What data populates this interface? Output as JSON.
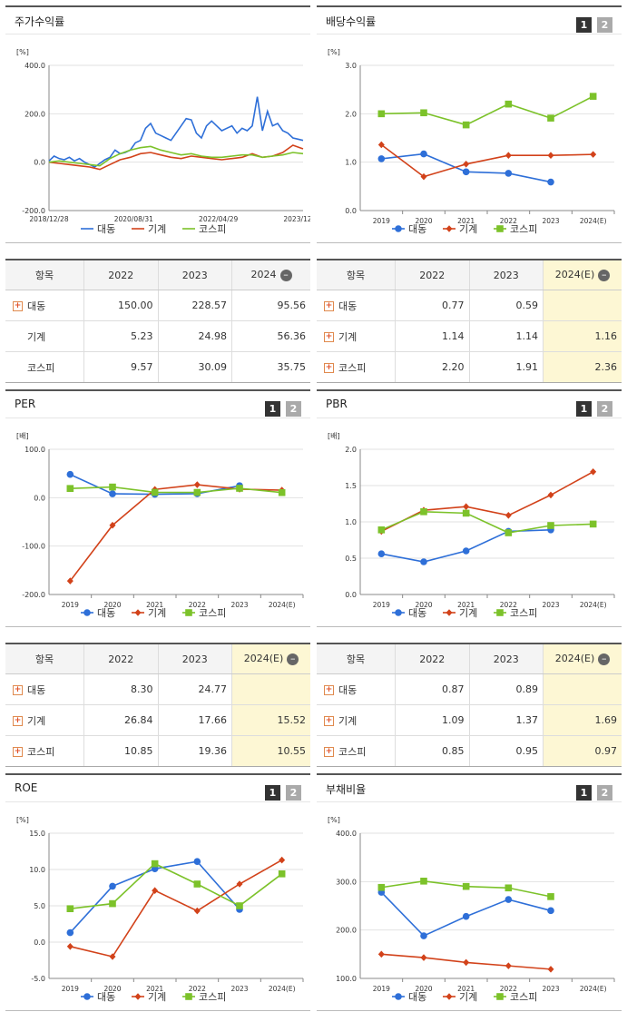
{
  "colors": {
    "daedong": "#2e6fd8",
    "machine": "#d2421a",
    "kospi": "#7cc22a"
  },
  "legend": [
    "대동",
    "기계",
    "코스피"
  ],
  "unit_pct": "[%]",
  "unit_bae": "[배]",
  "panels": {
    "stock": {
      "title": "주가수익률"
    },
    "dividend": {
      "title": "배당수익률",
      "btn1": "1",
      "btn2": "2"
    },
    "per": {
      "title": "PER",
      "btn1": "1",
      "btn2": "2"
    },
    "pbr": {
      "title": "PBR",
      "btn1": "1",
      "btn2": "2"
    },
    "roe": {
      "title": "ROE",
      "btn1": "1",
      "btn2": "2"
    },
    "debt": {
      "title": "부채비율",
      "btn1": "1",
      "btn2": "2"
    }
  },
  "tables": {
    "stock": {
      "headers": [
        "항목",
        "2022",
        "2023",
        "2024"
      ],
      "rows": [
        {
          "name": "대동",
          "v": [
            "150.00",
            "228.57",
            "95.56"
          ],
          "plus": true
        },
        {
          "name": "기계",
          "v": [
            "5.23",
            "24.98",
            "56.36"
          ],
          "plus": false
        },
        {
          "name": "코스피",
          "v": [
            "9.57",
            "30.09",
            "35.75"
          ],
          "plus": false
        }
      ]
    },
    "dividend": {
      "headers": [
        "항목",
        "2022",
        "2023",
        "2024(E)"
      ],
      "rows": [
        {
          "name": "대동",
          "v": [
            "0.77",
            "0.59",
            ""
          ],
          "plus": true
        },
        {
          "name": "기계",
          "v": [
            "1.14",
            "1.14",
            "1.16"
          ],
          "plus": true
        },
        {
          "name": "코스피",
          "v": [
            "2.20",
            "1.91",
            "2.36"
          ],
          "plus": true
        }
      ]
    },
    "per": {
      "headers": [
        "항목",
        "2022",
        "2023",
        "2024(E)"
      ],
      "rows": [
        {
          "name": "대동",
          "v": [
            "8.30",
            "24.77",
            ""
          ],
          "plus": true
        },
        {
          "name": "기계",
          "v": [
            "26.84",
            "17.66",
            "15.52"
          ],
          "plus": true
        },
        {
          "name": "코스피",
          "v": [
            "10.85",
            "19.36",
            "10.55"
          ],
          "plus": true
        }
      ]
    },
    "pbr": {
      "headers": [
        "항목",
        "2022",
        "2023",
        "2024(E)"
      ],
      "rows": [
        {
          "name": "대동",
          "v": [
            "0.87",
            "0.89",
            ""
          ],
          "plus": true
        },
        {
          "name": "기계",
          "v": [
            "1.09",
            "1.37",
            "1.69"
          ],
          "plus": true
        },
        {
          "name": "코스피",
          "v": [
            "0.85",
            "0.95",
            "0.97"
          ],
          "plus": true
        }
      ]
    }
  },
  "chart_data": [
    {
      "id": "stock",
      "type": "line",
      "ylabel": "[%]",
      "ylim": [
        -200,
        400
      ],
      "yticks": [
        "400.0",
        "200.0",
        "0.0",
        "-200.0"
      ],
      "xticks": [
        "2018/12/28",
        "2020/08/31",
        "2022/04/29",
        "2023/12/28"
      ],
      "xlim": [
        0,
        100
      ],
      "series": [
        {
          "name": "대동",
          "x": [
            0,
            2,
            4,
            6,
            8,
            10,
            12,
            14,
            16,
            18,
            20,
            22,
            24,
            26,
            28,
            30,
            32,
            34,
            36,
            38,
            40,
            42,
            44,
            46,
            48,
            50,
            52,
            54,
            56,
            58,
            60,
            62,
            64,
            66,
            68,
            70,
            72,
            74,
            76,
            78,
            80,
            82,
            84,
            86,
            88,
            90,
            92,
            94,
            96,
            98,
            100
          ],
          "y": [
            5,
            25,
            15,
            10,
            20,
            5,
            15,
            0,
            -10,
            -20,
            -5,
            10,
            20,
            50,
            35,
            40,
            50,
            80,
            90,
            140,
            160,
            120,
            110,
            100,
            90,
            120,
            150,
            180,
            175,
            120,
            100,
            150,
            170,
            150,
            130,
            140,
            150,
            120,
            140,
            130,
            150,
            270,
            130,
            210,
            150,
            160,
            130,
            120,
            100,
            95,
            90
          ]
        },
        {
          "name": "기계",
          "x": [
            0,
            4,
            8,
            12,
            16,
            20,
            24,
            28,
            32,
            36,
            40,
            44,
            48,
            52,
            56,
            60,
            64,
            68,
            72,
            76,
            80,
            84,
            88,
            92,
            96,
            100
          ],
          "y": [
            0,
            -5,
            -10,
            -15,
            -20,
            -30,
            -10,
            10,
            20,
            35,
            40,
            30,
            20,
            15,
            25,
            20,
            15,
            10,
            15,
            20,
            35,
            20,
            25,
            40,
            70,
            55
          ]
        },
        {
          "name": "코스피",
          "x": [
            0,
            4,
            8,
            12,
            16,
            20,
            24,
            28,
            32,
            36,
            40,
            44,
            48,
            52,
            56,
            60,
            64,
            68,
            72,
            76,
            80,
            84,
            88,
            92,
            96,
            100
          ],
          "y": [
            0,
            5,
            0,
            -5,
            -10,
            -15,
            15,
            35,
            50,
            60,
            65,
            50,
            40,
            30,
            35,
            25,
            20,
            20,
            25,
            30,
            30,
            20,
            25,
            30,
            40,
            35
          ]
        }
      ]
    },
    {
      "id": "dividend",
      "type": "line",
      "ylabel": "[%]",
      "ylim": [
        0,
        3
      ],
      "yticks": [
        "3.0",
        "2.0",
        "1.0",
        "0.0"
      ],
      "categories": [
        "2019",
        "2020",
        "2021",
        "2022",
        "2023",
        "2024(E)"
      ],
      "series": [
        {
          "name": "대동",
          "values": [
            1.07,
            1.17,
            0.8,
            0.77,
            0.59,
            null
          ]
        },
        {
          "name": "기계",
          "values": [
            1.36,
            0.7,
            0.96,
            1.14,
            1.14,
            1.16
          ]
        },
        {
          "name": "코스피",
          "values": [
            2.0,
            2.02,
            1.77,
            2.2,
            1.91,
            2.36
          ]
        }
      ]
    },
    {
      "id": "per",
      "type": "line",
      "ylabel": "[배]",
      "ylim": [
        -200,
        100
      ],
      "yticks": [
        "100.0",
        "0.0",
        "-100.0",
        "-200.0"
      ],
      "categories": [
        "2019",
        "2020",
        "2021",
        "2022",
        "2023",
        "2024(E)"
      ],
      "series": [
        {
          "name": "대동",
          "values": [
            48,
            8,
            7,
            8.3,
            24.77,
            null
          ]
        },
        {
          "name": "기계",
          "values": [
            -172,
            -57,
            17,
            26.84,
            17.66,
            15.52
          ]
        },
        {
          "name": "코스피",
          "values": [
            19,
            22,
            11,
            10.85,
            19.36,
            10.55
          ]
        }
      ]
    },
    {
      "id": "pbr",
      "type": "line",
      "ylabel": "[배]",
      "ylim": [
        0,
        2
      ],
      "yticks": [
        "2.0",
        "1.5",
        "1.0",
        "0.5",
        "0.0"
      ],
      "categories": [
        "2019",
        "2020",
        "2021",
        "2022",
        "2023",
        "2024(E)"
      ],
      "series": [
        {
          "name": "대동",
          "values": [
            0.56,
            0.45,
            0.6,
            0.87,
            0.89,
            null
          ]
        },
        {
          "name": "기계",
          "values": [
            0.87,
            1.16,
            1.21,
            1.09,
            1.37,
            1.69
          ]
        },
        {
          "name": "코스피",
          "values": [
            0.89,
            1.14,
            1.12,
            0.85,
            0.95,
            0.97
          ]
        }
      ]
    },
    {
      "id": "roe",
      "type": "line",
      "ylabel": "[%]",
      "ylim": [
        -5,
        15
      ],
      "yticks": [
        "15.0",
        "10.0",
        "5.0",
        "0.0",
        "-5.0"
      ],
      "categories": [
        "2019",
        "2020",
        "2021",
        "2022",
        "2023",
        "2024(E)"
      ],
      "series": [
        {
          "name": "대동",
          "values": [
            1.3,
            7.7,
            10.1,
            11.1,
            4.5,
            null
          ]
        },
        {
          "name": "기계",
          "values": [
            -0.6,
            -2.0,
            7.1,
            4.3,
            8.0,
            11.3
          ]
        },
        {
          "name": "코스피",
          "values": [
            4.6,
            5.3,
            10.8,
            8.0,
            5.0,
            9.4
          ]
        }
      ]
    },
    {
      "id": "debt",
      "type": "line",
      "ylabel": "[%]",
      "ylim": [
        100,
        400
      ],
      "yticks": [
        "400.0",
        "300.0",
        "200.0",
        "100.0"
      ],
      "categories": [
        "2019",
        "2020",
        "2021",
        "2022",
        "2023",
        "2024(E)"
      ],
      "series": [
        {
          "name": "대동",
          "values": [
            278,
            188,
            228,
            263,
            240,
            null
          ]
        },
        {
          "name": "기계",
          "values": [
            150,
            143,
            133,
            126,
            119,
            null
          ]
        },
        {
          "name": "코스피",
          "values": [
            288,
            301,
            290,
            287,
            269,
            null
          ]
        }
      ]
    }
  ]
}
